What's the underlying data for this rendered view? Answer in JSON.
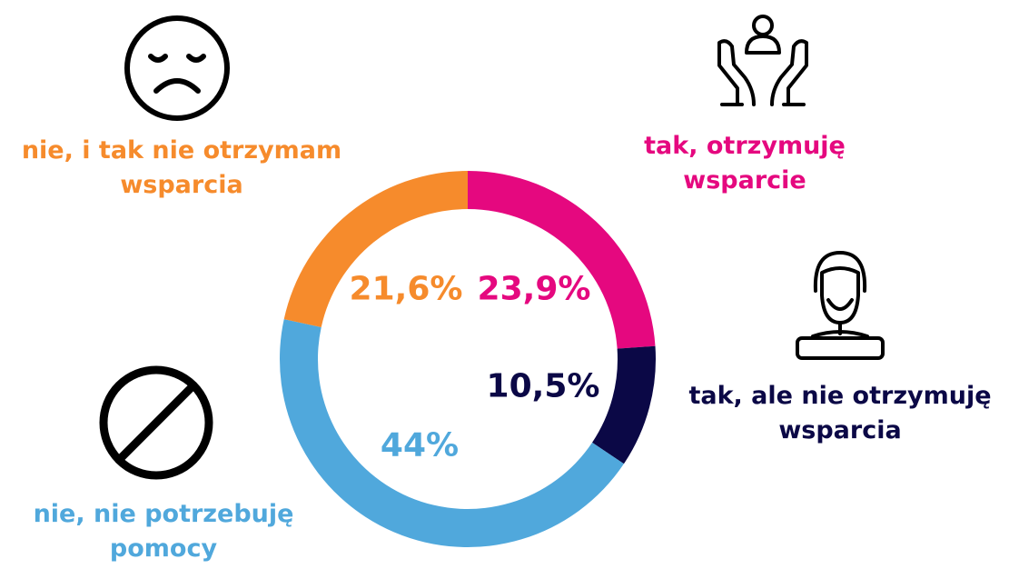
{
  "chart_data": {
    "type": "donut",
    "categories": [
      "tak, otrzymuję wsparcie",
      "tak, ale nie otrzymuję wsparcia",
      "nie, nie potrzebuję pomocy",
      "nie, i tak nie otrzymam wsparcia"
    ],
    "values": [
      23.9,
      10.5,
      44,
      21.6
    ],
    "value_labels": [
      "23,9%",
      "10,5%",
      "44%",
      "21,6%"
    ],
    "colors": [
      "#e5087f",
      "#0b0846",
      "#50a8dc",
      "#f68b2c"
    ]
  }
}
